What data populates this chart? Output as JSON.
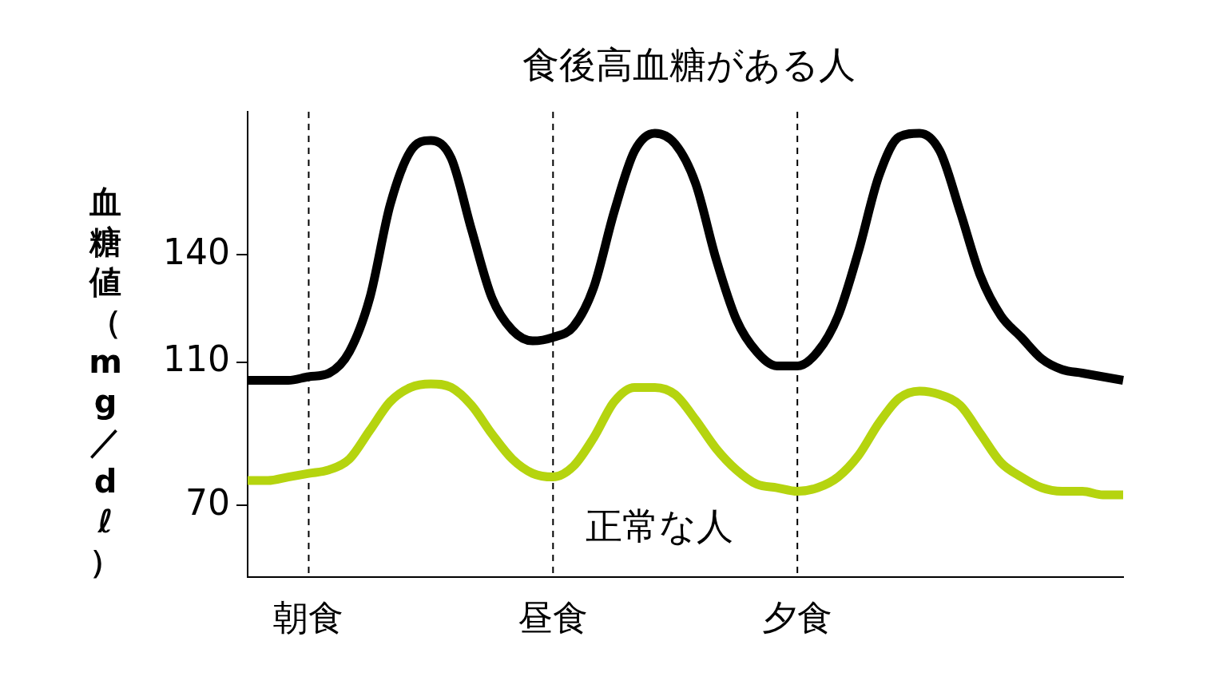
{
  "chart_data": {
    "type": "line",
    "ylabel": "血糖値（mg／dℓ）",
    "categories": [
      null,
      null,
      null,
      "朝食",
      null,
      null,
      null,
      null,
      null,
      null,
      null,
      null,
      null,
      null,
      null,
      "昼食",
      null,
      null,
      null,
      null,
      null,
      null,
      null,
      null,
      null,
      null,
      null,
      "夕食",
      null,
      null,
      null,
      null,
      null,
      null,
      null,
      null,
      null,
      null,
      null,
      null,
      null,
      null,
      null,
      null
    ],
    "series": [
      {
        "name": "食後高血糖がある人",
        "color": "#000000",
        "values": [
          105,
          105,
          105,
          106,
          107,
          113,
          128,
          154,
          169,
          172,
          167,
          147,
          128,
          119,
          116,
          117,
          120,
          131,
          152,
          169,
          174,
          171,
          160,
          139,
          122,
          113,
          109,
          109,
          113,
          123,
          141,
          162,
          173,
          174,
          169,
          152,
          134,
          123,
          117,
          111,
          108,
          107,
          106,
          105
        ]
      },
      {
        "name": "正常な人",
        "color": "#b5d40f",
        "values": [
          77,
          77,
          78,
          79,
          80,
          83,
          91,
          99,
          103,
          104,
          103,
          98,
          90,
          83,
          79,
          78,
          81,
          89,
          99,
          103,
          103,
          101,
          94,
          86,
          80,
          76,
          75,
          74,
          75,
          78,
          84,
          93,
          100,
          102,
          101,
          98,
          90,
          82,
          78,
          75,
          74,
          74,
          73,
          73
        ]
      }
    ],
    "ylim": [
      50,
      180
    ],
    "yticks": [
      70,
      110,
      140
    ],
    "legend": false,
    "marker": "none",
    "line_style": "solid",
    "ref_lines": [
      {
        "axis": "x",
        "value": "朝食",
        "line_style": "dashed",
        "color": "#000000"
      },
      {
        "axis": "x",
        "value": "昼食",
        "line_style": "dashed",
        "color": "#000000"
      },
      {
        "axis": "x",
        "value": "夕食",
        "line_style": "dashed",
        "color": "#000000"
      }
    ]
  }
}
